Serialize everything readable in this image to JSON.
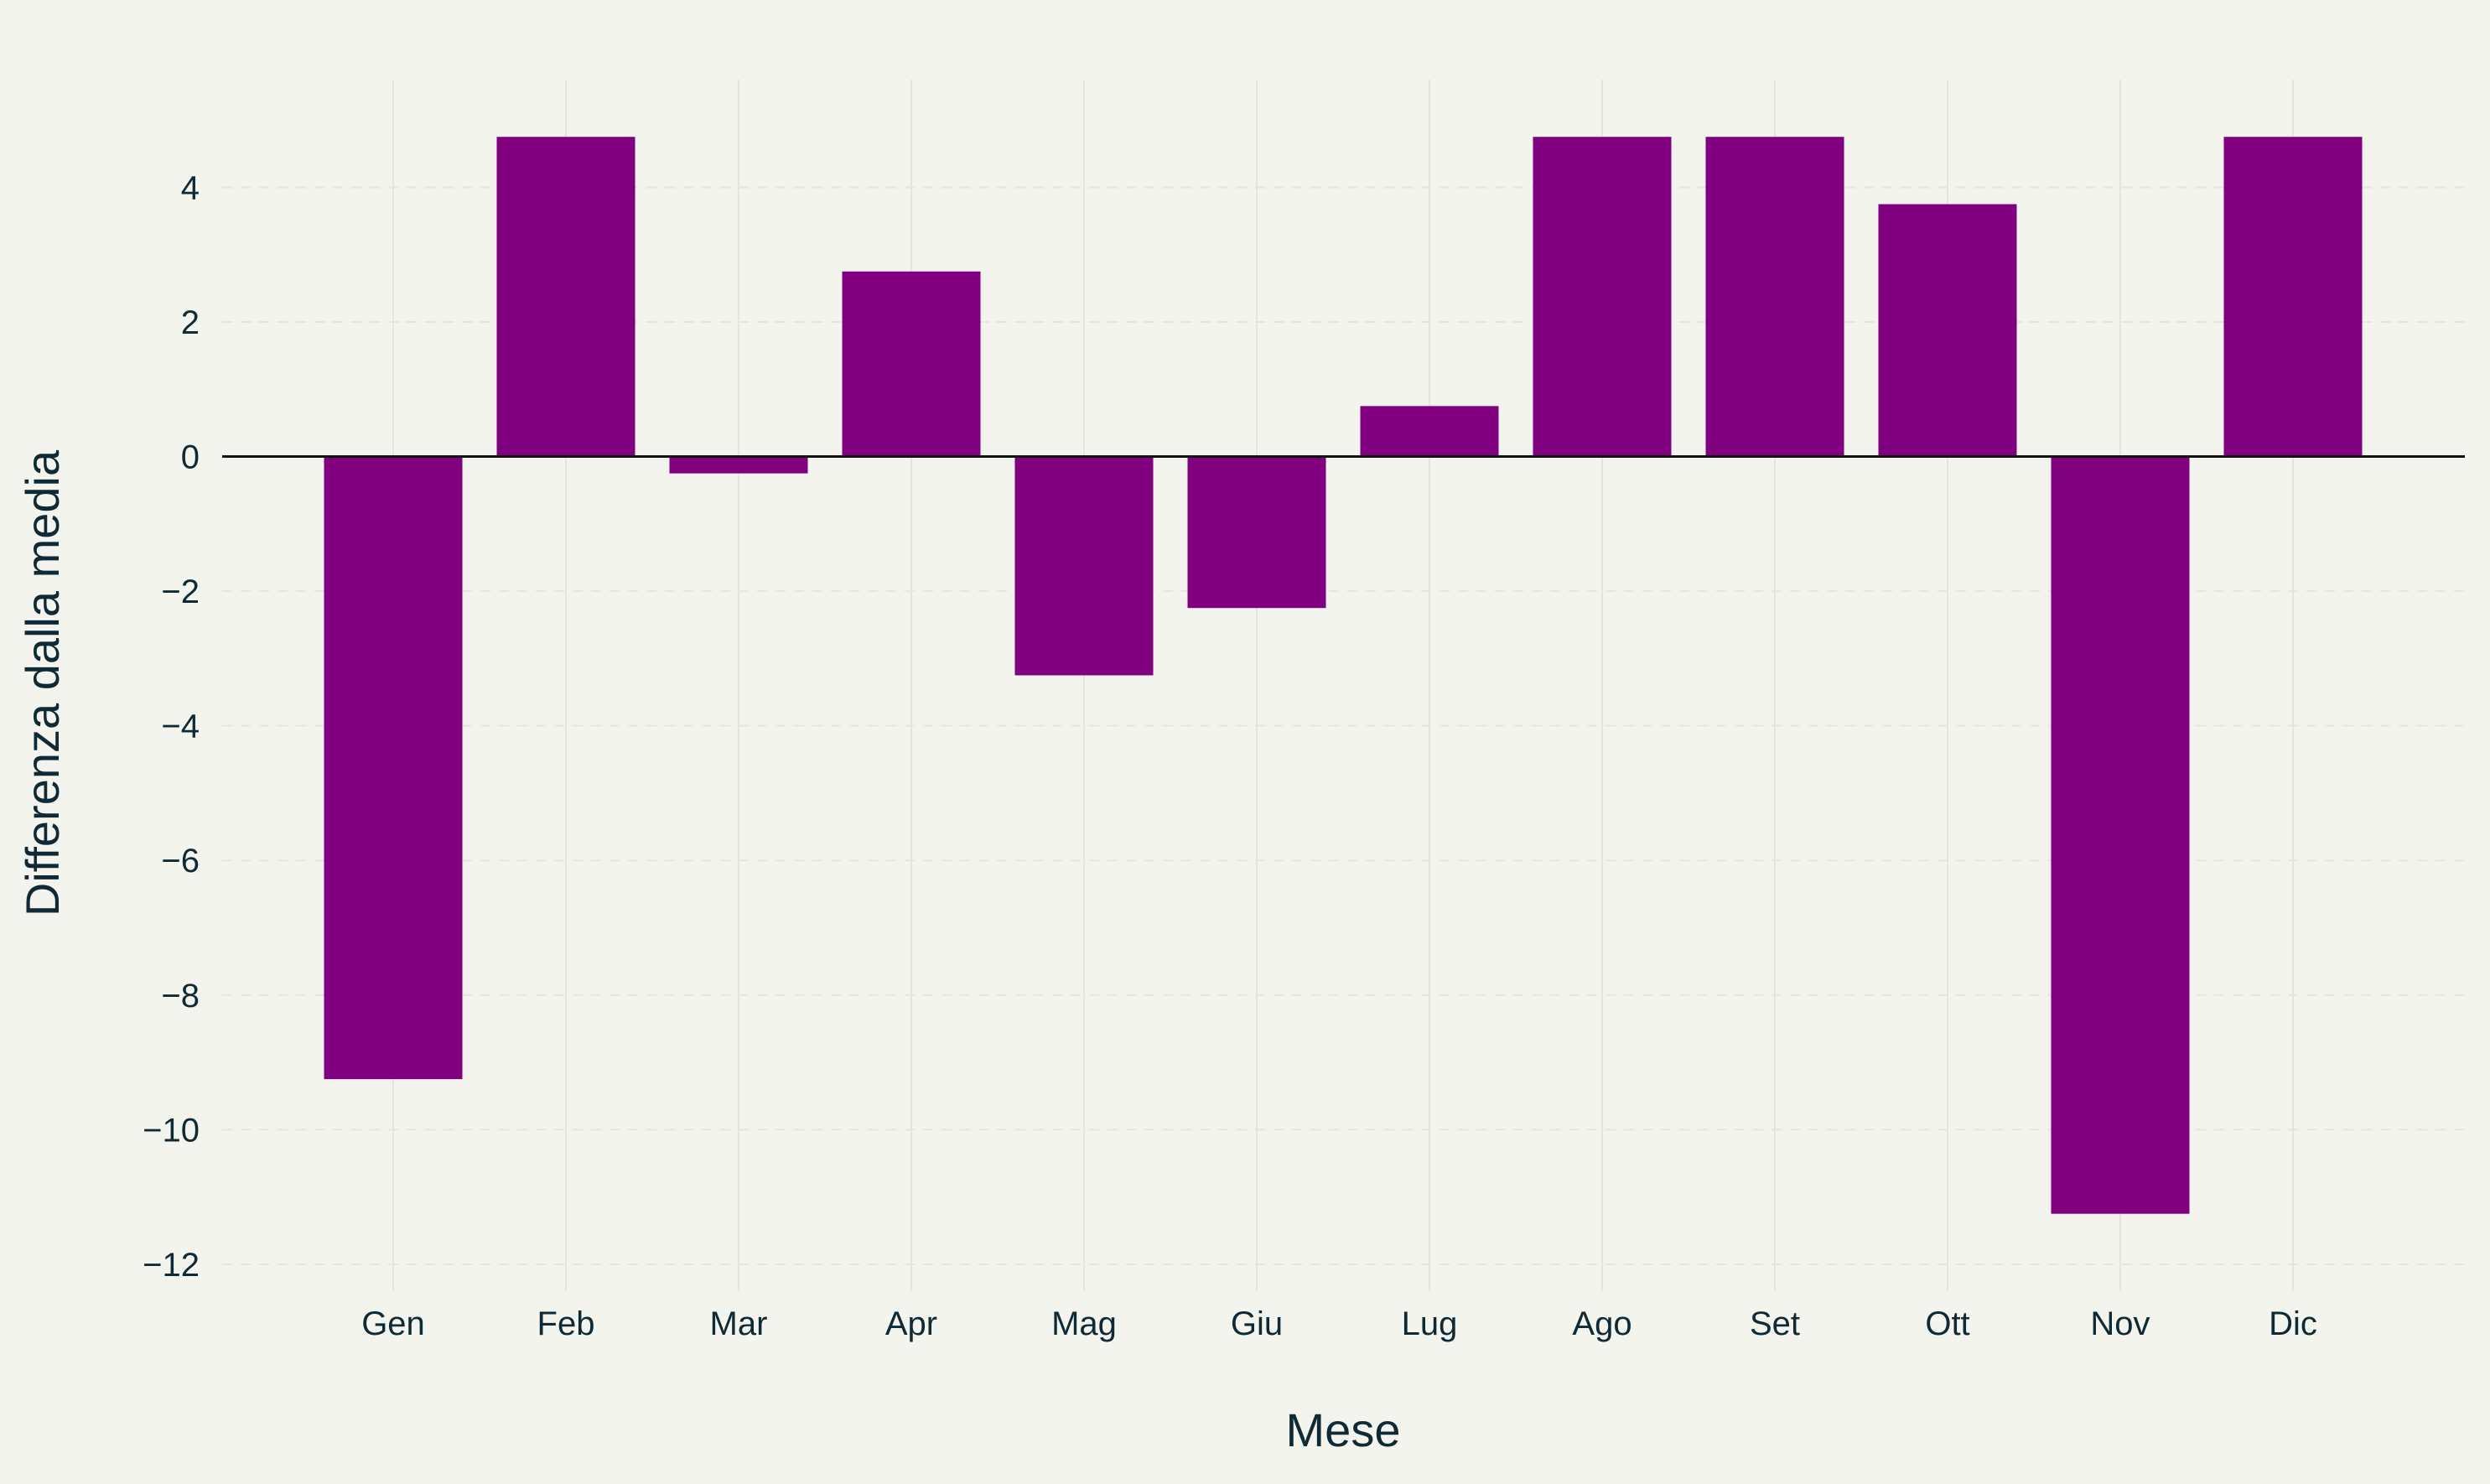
{
  "chart_data": {
    "type": "bar",
    "title": "",
    "xlabel": "Mese",
    "ylabel": "Differenza dalla media",
    "categories": [
      "Gen",
      "Feb",
      "Mar",
      "Apr",
      "Mag",
      "Giu",
      "Lug",
      "Ago",
      "Set",
      "Ott",
      "Nov",
      "Dic"
    ],
    "values": [
      -9.25,
      4.75,
      -0.25,
      2.75,
      -3.25,
      -2.25,
      0.75,
      4.75,
      4.75,
      3.75,
      -11.25,
      4.75
    ],
    "ylim": [
      -12.4,
      5.6
    ],
    "yticks": [
      4,
      2,
      0,
      -2,
      -4,
      -6,
      -8,
      -10,
      -12
    ],
    "ytick_labels": [
      "4",
      "2",
      "0",
      "−2",
      "−4",
      "−6",
      "−8",
      "−10",
      "−12"
    ],
    "grid": true,
    "legend": "none",
    "colors": {
      "bar": "#800080",
      "background": "#f3f4ee",
      "grid": "#e4e5df",
      "zero_line": "#111111",
      "text": "#0f2a35"
    }
  }
}
